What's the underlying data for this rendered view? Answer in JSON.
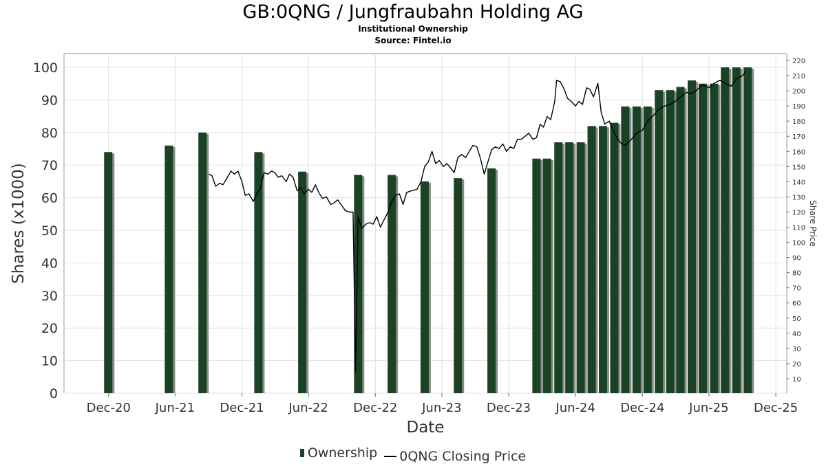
{
  "title": "GB:0QNG / Jungfraubahn Holding AG",
  "subtitle1": "Institutional Ownership",
  "subtitle2": "Source: Fintel.io",
  "colors": {
    "bar": "#1a4325",
    "bar_shadow": "#8a8a8a",
    "line": "#000000",
    "grid": "#e0e0e0"
  },
  "legend": {
    "ownership": "Ownership",
    "price": "0QNG Closing Price"
  },
  "chart_data": {
    "type": "bar",
    "xlabel": "Date",
    "ylabel": "Shares (x1000)",
    "y2label": "Share Price",
    "ylim": [
      0,
      100
    ],
    "y2lim": [
      5,
      220
    ],
    "grid": true,
    "legend_position": "bottom",
    "x_ticks": [
      "Dec-20",
      "Jun-21",
      "Dec-21",
      "Jun-22",
      "Dec-22",
      "Jun-23",
      "Dec-23",
      "Jun-24",
      "Dec-24",
      "Jun-25",
      "Dec-25"
    ],
    "y_ticks": [
      0,
      10,
      20,
      30,
      40,
      50,
      60,
      70,
      80,
      90,
      100
    ],
    "y2_ticks": [
      10,
      20,
      30,
      40,
      50,
      60,
      70,
      80,
      90,
      100,
      110,
      120,
      130,
      140,
      150,
      160,
      170,
      180,
      190,
      200,
      210,
      220
    ],
    "series": [
      {
        "name": "Ownership",
        "type": "bar",
        "points": [
          {
            "date": "2020-11-30",
            "value": 74
          },
          {
            "date": "2021-05-15",
            "value": 76
          },
          {
            "date": "2021-08-15",
            "value": 80
          },
          {
            "date": "2022-01-15",
            "value": 74
          },
          {
            "date": "2022-05-15",
            "value": 68
          },
          {
            "date": "2022-10-15",
            "value": 67
          },
          {
            "date": "2023-01-15",
            "value": 67
          },
          {
            "date": "2023-04-15",
            "value": 65
          },
          {
            "date": "2023-07-15",
            "value": 66
          },
          {
            "date": "2023-10-15",
            "value": 69
          },
          {
            "date": "2024-02-15",
            "value": 72
          },
          {
            "date": "2024-03-15",
            "value": 72
          },
          {
            "date": "2024-04-15",
            "value": 77
          },
          {
            "date": "2024-05-15",
            "value": 77
          },
          {
            "date": "2024-06-15",
            "value": 77
          },
          {
            "date": "2024-07-15",
            "value": 82
          },
          {
            "date": "2024-08-15",
            "value": 82
          },
          {
            "date": "2024-09-15",
            "value": 83
          },
          {
            "date": "2024-10-15",
            "value": 88
          },
          {
            "date": "2024-11-15",
            "value": 88
          },
          {
            "date": "2024-12-15",
            "value": 88
          },
          {
            "date": "2025-01-15",
            "value": 93
          },
          {
            "date": "2025-02-15",
            "value": 93
          },
          {
            "date": "2025-03-15",
            "value": 94
          },
          {
            "date": "2025-04-15",
            "value": 96
          },
          {
            "date": "2025-05-15",
            "value": 95
          },
          {
            "date": "2025-06-15",
            "value": 95
          },
          {
            "date": "2025-07-15",
            "value": 100
          },
          {
            "date": "2025-08-15",
            "value": 100
          },
          {
            "date": "2025-09-15",
            "value": 100
          }
        ]
      },
      {
        "name": "0QNG Closing Price",
        "type": "line",
        "axis": "right",
        "points": [
          {
            "date": "2021-09-01",
            "value": 145
          },
          {
            "date": "2021-09-10",
            "value": 144
          },
          {
            "date": "2021-09-20",
            "value": 137
          },
          {
            "date": "2021-10-01",
            "value": 139
          },
          {
            "date": "2021-10-10",
            "value": 138
          },
          {
            "date": "2021-10-20",
            "value": 142
          },
          {
            "date": "2021-11-01",
            "value": 147
          },
          {
            "date": "2021-11-10",
            "value": 145
          },
          {
            "date": "2021-11-20",
            "value": 147
          },
          {
            "date": "2021-12-01",
            "value": 140
          },
          {
            "date": "2021-12-10",
            "value": 131
          },
          {
            "date": "2021-12-20",
            "value": 132
          },
          {
            "date": "2022-01-01",
            "value": 127
          },
          {
            "date": "2022-01-10",
            "value": 132
          },
          {
            "date": "2022-01-20",
            "value": 135
          },
          {
            "date": "2022-01-30",
            "value": 146
          },
          {
            "date": "2022-02-10",
            "value": 145
          },
          {
            "date": "2022-02-20",
            "value": 147
          },
          {
            "date": "2022-03-01",
            "value": 146
          },
          {
            "date": "2022-03-10",
            "value": 143
          },
          {
            "date": "2022-03-20",
            "value": 144
          },
          {
            "date": "2022-04-01",
            "value": 140
          },
          {
            "date": "2022-04-10",
            "value": 145
          },
          {
            "date": "2022-04-20",
            "value": 143
          },
          {
            "date": "2022-05-01",
            "value": 134
          },
          {
            "date": "2022-05-10",
            "value": 136
          },
          {
            "date": "2022-05-20",
            "value": 132
          },
          {
            "date": "2022-06-01",
            "value": 135
          },
          {
            "date": "2022-06-10",
            "value": 133
          },
          {
            "date": "2022-06-20",
            "value": 138
          },
          {
            "date": "2022-07-01",
            "value": 132
          },
          {
            "date": "2022-07-10",
            "value": 129
          },
          {
            "date": "2022-07-20",
            "value": 130
          },
          {
            "date": "2022-08-01",
            "value": 125
          },
          {
            "date": "2022-08-10",
            "value": 126
          },
          {
            "date": "2022-08-20",
            "value": 128
          },
          {
            "date": "2022-09-01",
            "value": 124
          },
          {
            "date": "2022-09-10",
            "value": 121
          },
          {
            "date": "2022-09-20",
            "value": 120
          },
          {
            "date": "2022-10-01",
            "value": 120
          },
          {
            "date": "2022-10-08",
            "value": 15
          },
          {
            "date": "2022-10-15",
            "value": 117
          },
          {
            "date": "2022-10-25",
            "value": 109
          },
          {
            "date": "2022-11-05",
            "value": 112
          },
          {
            "date": "2022-11-15",
            "value": 113
          },
          {
            "date": "2022-11-25",
            "value": 112
          },
          {
            "date": "2022-12-05",
            "value": 117
          },
          {
            "date": "2022-12-15",
            "value": 110
          },
          {
            "date": "2022-12-25",
            "value": 115
          },
          {
            "date": "2023-01-05",
            "value": 120
          },
          {
            "date": "2023-01-15",
            "value": 127
          },
          {
            "date": "2023-01-25",
            "value": 131
          },
          {
            "date": "2023-02-05",
            "value": 132
          },
          {
            "date": "2023-02-15",
            "value": 125
          },
          {
            "date": "2023-02-25",
            "value": 133
          },
          {
            "date": "2023-03-10",
            "value": 134
          },
          {
            "date": "2023-03-25",
            "value": 135
          },
          {
            "date": "2023-04-05",
            "value": 140
          },
          {
            "date": "2023-04-15",
            "value": 150
          },
          {
            "date": "2023-04-25",
            "value": 153
          },
          {
            "date": "2023-05-05",
            "value": 160
          },
          {
            "date": "2023-05-15",
            "value": 152
          },
          {
            "date": "2023-05-25",
            "value": 154
          },
          {
            "date": "2023-06-05",
            "value": 150
          },
          {
            "date": "2023-06-15",
            "value": 152
          },
          {
            "date": "2023-06-25",
            "value": 149
          },
          {
            "date": "2023-07-05",
            "value": 146
          },
          {
            "date": "2023-07-15",
            "value": 156
          },
          {
            "date": "2023-07-25",
            "value": 158
          },
          {
            "date": "2023-08-05",
            "value": 156
          },
          {
            "date": "2023-08-15",
            "value": 160
          },
          {
            "date": "2023-08-25",
            "value": 164
          },
          {
            "date": "2023-09-05",
            "value": 163
          },
          {
            "date": "2023-09-15",
            "value": 155
          },
          {
            "date": "2023-09-25",
            "value": 145
          },
          {
            "date": "2023-10-05",
            "value": 153
          },
          {
            "date": "2023-10-15",
            "value": 161
          },
          {
            "date": "2023-10-25",
            "value": 163
          },
          {
            "date": "2023-11-05",
            "value": 162
          },
          {
            "date": "2023-11-15",
            "value": 165
          },
          {
            "date": "2023-11-25",
            "value": 160
          },
          {
            "date": "2023-12-05",
            "value": 163
          },
          {
            "date": "2023-12-15",
            "value": 162
          },
          {
            "date": "2023-12-25",
            "value": 168
          },
          {
            "date": "2024-01-05",
            "value": 168
          },
          {
            "date": "2024-01-15",
            "value": 170
          },
          {
            "date": "2024-01-25",
            "value": 172
          },
          {
            "date": "2024-02-05",
            "value": 168
          },
          {
            "date": "2024-02-15",
            "value": 169
          },
          {
            "date": "2024-02-25",
            "value": 178
          },
          {
            "date": "2024-03-05",
            "value": 176
          },
          {
            "date": "2024-03-15",
            "value": 183
          },
          {
            "date": "2024-03-25",
            "value": 181
          },
          {
            "date": "2024-04-05",
            "value": 193
          },
          {
            "date": "2024-04-10",
            "value": 207
          },
          {
            "date": "2024-04-20",
            "value": 206
          },
          {
            "date": "2024-05-01",
            "value": 201
          },
          {
            "date": "2024-05-10",
            "value": 195
          },
          {
            "date": "2024-05-20",
            "value": 193
          },
          {
            "date": "2024-06-01",
            "value": 190
          },
          {
            "date": "2024-06-10",
            "value": 193
          },
          {
            "date": "2024-06-20",
            "value": 191
          },
          {
            "date": "2024-07-01",
            "value": 202
          },
          {
            "date": "2024-07-10",
            "value": 201
          },
          {
            "date": "2024-07-20",
            "value": 196
          },
          {
            "date": "2024-08-01",
            "value": 205
          },
          {
            "date": "2024-08-10",
            "value": 186
          },
          {
            "date": "2024-08-20",
            "value": 178
          },
          {
            "date": "2024-09-01",
            "value": 180
          },
          {
            "date": "2024-09-10",
            "value": 175
          },
          {
            "date": "2024-09-20",
            "value": 170
          },
          {
            "date": "2024-10-01",
            "value": 166
          },
          {
            "date": "2024-10-15",
            "value": 164
          },
          {
            "date": "2024-11-01",
            "value": 168
          },
          {
            "date": "2024-11-15",
            "value": 172
          },
          {
            "date": "2024-12-01",
            "value": 174
          },
          {
            "date": "2024-12-15",
            "value": 180
          },
          {
            "date": "2025-01-01",
            "value": 184
          },
          {
            "date": "2025-01-15",
            "value": 188
          },
          {
            "date": "2025-02-01",
            "value": 190
          },
          {
            "date": "2025-02-15",
            "value": 191
          },
          {
            "date": "2025-03-01",
            "value": 193
          },
          {
            "date": "2025-03-15",
            "value": 196
          },
          {
            "date": "2025-04-01",
            "value": 199
          },
          {
            "date": "2025-04-15",
            "value": 198
          },
          {
            "date": "2025-05-01",
            "value": 201
          },
          {
            "date": "2025-05-15",
            "value": 204
          },
          {
            "date": "2025-06-01",
            "value": 202
          },
          {
            "date": "2025-06-15",
            "value": 205
          },
          {
            "date": "2025-07-01",
            "value": 207
          },
          {
            "date": "2025-07-15",
            "value": 205
          },
          {
            "date": "2025-08-01",
            "value": 203
          },
          {
            "date": "2025-08-15",
            "value": 208
          },
          {
            "date": "2025-09-01",
            "value": 210
          },
          {
            "date": "2025-09-10",
            "value": 213
          }
        ]
      }
    ]
  }
}
